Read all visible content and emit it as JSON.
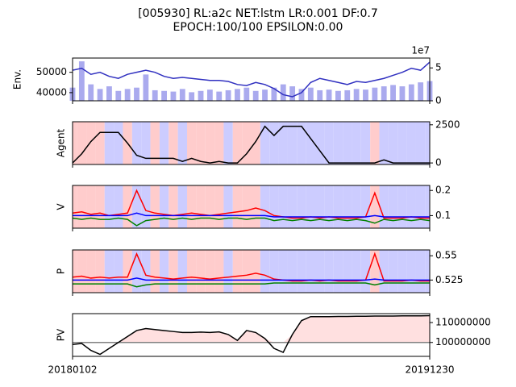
{
  "figure": {
    "title_lines": [
      "[005930] RL:a2c NET:lstm LR:0.001 DF:0.7",
      "EPOCH:100/100 EPSILON:0.00"
    ]
  },
  "chart_data": [
    {
      "type": "line",
      "ylabel": "Env.",
      "xlim": [
        0,
        39
      ],
      "x": [
        0,
        1,
        2,
        3,
        4,
        5,
        6,
        7,
        8,
        9,
        10,
        11,
        12,
        13,
        14,
        15,
        16,
        17,
        18,
        19,
        20,
        21,
        22,
        23,
        24,
        25,
        26,
        27,
        28,
        29,
        30,
        31,
        32,
        33,
        34,
        35,
        36,
        37,
        38,
        39
      ],
      "ylim": [
        36000,
        57000
      ],
      "yticks": [
        40000,
        50000
      ],
      "ytick_side": "left",
      "y2lim": [
        0,
        65000000
      ],
      "y2ticks": [
        0,
        {
          "value": 50000000,
          "label": "5"
        }
      ],
      "y2_offset_label": "1e7",
      "series": [
        {
          "color": "#aaaaee",
          "style": "bar",
          "axis": "y2",
          "values": [
            20000000,
            60000000,
            25000000,
            18000000,
            22000000,
            15000000,
            18000000,
            20000000,
            40000000,
            16000000,
            15000000,
            14000000,
            18000000,
            13000000,
            15000000,
            17000000,
            14000000,
            16000000,
            18000000,
            20000000,
            15000000,
            17000000,
            20000000,
            25000000,
            22000000,
            18000000,
            20000000,
            16000000,
            17000000,
            15000000,
            16000000,
            18000000,
            17000000,
            20000000,
            22000000,
            24000000,
            22000000,
            25000000,
            28000000,
            30000000
          ]
        },
        {
          "color": "#3030c0",
          "values": [
            51000,
            52000,
            49000,
            50000,
            48000,
            47000,
            49000,
            50000,
            51000,
            50000,
            48000,
            47000,
            47500,
            47000,
            46500,
            46000,
            46000,
            45500,
            44000,
            43500,
            45000,
            44000,
            42000,
            39000,
            38000,
            40000,
            45000,
            47000,
            46000,
            45000,
            44000,
            45500,
            45000,
            46000,
            47000,
            48500,
            50000,
            52000,
            51000,
            55000
          ]
        }
      ]
    },
    {
      "type": "line",
      "ylabel": "Agent",
      "xlim": [
        0,
        39
      ],
      "x": [
        0,
        1,
        2,
        3,
        4,
        5,
        6,
        7,
        8,
        9,
        10,
        11,
        12,
        13,
        14,
        15,
        16,
        17,
        18,
        19,
        20,
        21,
        22,
        23,
        24,
        25,
        26,
        27,
        28,
        29,
        30,
        31,
        32,
        33,
        34,
        35,
        36,
        37,
        38,
        39
      ],
      "ylim": [
        -100,
        2700
      ],
      "yticks": [
        0,
        2500
      ],
      "ytick_side": "right",
      "band_colors": [
        "#ffcccc",
        "#ffcccc",
        "#ffcccc",
        "#ffcccc",
        "#ccccff",
        "#ccccff",
        "#ffcccc",
        "#ccccff",
        "#ccccff",
        "#ffcccc",
        "#ccccff",
        "#ffcccc",
        "#ccccff",
        "#ffcccc",
        "#ffcccc",
        "#ffcccc",
        "#ffcccc",
        "#ccccff",
        "#ffcccc",
        "#ffcccc",
        "#ffcccc",
        "#ccccff",
        "#ccccff",
        "#ccccff",
        "#ccccff",
        "#ccccff",
        "#ccccff",
        "#ccccff",
        "#ccccff",
        "#ccccff",
        "#ccccff",
        "#ccccff",
        "#ccccff",
        "#ffcccc",
        "#ccccff",
        "#ccccff",
        "#ccccff",
        "#ccccff",
        "#ccccff",
        "#ccccff"
      ],
      "series": [
        {
          "color": "#000000",
          "values": [
            0,
            600,
            1400,
            2000,
            2000,
            2000,
            1300,
            500,
            300,
            300,
            300,
            300,
            100,
            300,
            100,
            0,
            100,
            0,
            0,
            600,
            1400,
            2400,
            1800,
            2400,
            2400,
            2400,
            1600,
            800,
            0,
            0,
            0,
            0,
            0,
            0,
            200,
            0,
            0,
            0,
            0,
            0
          ]
        }
      ]
    },
    {
      "type": "line",
      "ylabel": "V",
      "xlim": [
        0,
        39
      ],
      "x": [
        0,
        1,
        2,
        3,
        4,
        5,
        6,
        7,
        8,
        9,
        10,
        11,
        12,
        13,
        14,
        15,
        16,
        17,
        18,
        19,
        20,
        21,
        22,
        23,
        24,
        25,
        26,
        27,
        28,
        29,
        30,
        31,
        32,
        33,
        34,
        35,
        36,
        37,
        38,
        39
      ],
      "ylim": [
        0.05,
        0.22
      ],
      "yticks": [
        0.1,
        0.2
      ],
      "ytick_side": "right",
      "band_colors": [
        "#ffcccc",
        "#ffcccc",
        "#ffcccc",
        "#ffcccc",
        "#ccccff",
        "#ccccff",
        "#ffcccc",
        "#ccccff",
        "#ccccff",
        "#ffcccc",
        "#ccccff",
        "#ffcccc",
        "#ccccff",
        "#ffcccc",
        "#ffcccc",
        "#ffcccc",
        "#ffcccc",
        "#ccccff",
        "#ffcccc",
        "#ffcccc",
        "#ffcccc",
        "#ccccff",
        "#ccccff",
        "#ccccff",
        "#ccccff",
        "#ccccff",
        "#ccccff",
        "#ccccff",
        "#ccccff",
        "#ccccff",
        "#ccccff",
        "#ccccff",
        "#ccccff",
        "#ffcccc",
        "#ccccff",
        "#ccccff",
        "#ccccff",
        "#ccccff",
        "#ccccff",
        "#ccccff"
      ],
      "series": [
        {
          "color": "#ff0000",
          "values": [
            0.11,
            0.115,
            0.105,
            0.11,
            0.1,
            0.105,
            0.11,
            0.2,
            0.12,
            0.11,
            0.105,
            0.1,
            0.105,
            0.11,
            0.105,
            0.1,
            0.105,
            0.11,
            0.115,
            0.12,
            0.13,
            0.12,
            0.1,
            0.095,
            0.09,
            0.09,
            0.095,
            0.09,
            0.095,
            0.09,
            0.09,
            0.09,
            0.095,
            0.19,
            0.09,
            0.09,
            0.09,
            0.095,
            0.09,
            0.09
          ]
        },
        {
          "color": "#008000",
          "values": [
            0.09,
            0.085,
            0.09,
            0.085,
            0.085,
            0.09,
            0.085,
            0.06,
            0.08,
            0.085,
            0.09,
            0.085,
            0.09,
            0.085,
            0.09,
            0.09,
            0.085,
            0.09,
            0.09,
            0.085,
            0.09,
            0.09,
            0.08,
            0.085,
            0.08,
            0.085,
            0.08,
            0.085,
            0.08,
            0.085,
            0.08,
            0.085,
            0.08,
            0.07,
            0.085,
            0.08,
            0.085,
            0.08,
            0.085,
            0.08
          ]
        },
        {
          "color": "#0000ff",
          "values": [
            0.1,
            0.1,
            0.1,
            0.1,
            0.1,
            0.1,
            0.1,
            0.11,
            0.1,
            0.1,
            0.1,
            0.1,
            0.1,
            0.1,
            0.1,
            0.1,
            0.1,
            0.1,
            0.1,
            0.1,
            0.1,
            0.1,
            0.095,
            0.095,
            0.095,
            0.095,
            0.095,
            0.095,
            0.095,
            0.095,
            0.095,
            0.095,
            0.095,
            0.1,
            0.095,
            0.095,
            0.095,
            0.095,
            0.095,
            0.095
          ]
        }
      ]
    },
    {
      "type": "line",
      "ylabel": "P",
      "xlim": [
        0,
        39
      ],
      "x": [
        0,
        1,
        2,
        3,
        4,
        5,
        6,
        7,
        8,
        9,
        10,
        11,
        12,
        13,
        14,
        15,
        16,
        17,
        18,
        19,
        20,
        21,
        22,
        23,
        24,
        25,
        26,
        27,
        28,
        29,
        30,
        31,
        32,
        33,
        34,
        35,
        36,
        37,
        38,
        39
      ],
      "ylim": [
        0.512,
        0.556
      ],
      "yticks": [
        0.525,
        0.55
      ],
      "ytick_side": "right",
      "band_colors": [
        "#ffcccc",
        "#ffcccc",
        "#ffcccc",
        "#ffcccc",
        "#ccccff",
        "#ccccff",
        "#ffcccc",
        "#ccccff",
        "#ccccff",
        "#ffcccc",
        "#ccccff",
        "#ffcccc",
        "#ccccff",
        "#ffcccc",
        "#ffcccc",
        "#ffcccc",
        "#ffcccc",
        "#ccccff",
        "#ffcccc",
        "#ffcccc",
        "#ffcccc",
        "#ccccff",
        "#ccccff",
        "#ccccff",
        "#ccccff",
        "#ccccff",
        "#ccccff",
        "#ccccff",
        "#ccccff",
        "#ccccff",
        "#ccccff",
        "#ccccff",
        "#ccccff",
        "#ffcccc",
        "#ccccff",
        "#ccccff",
        "#ccccff",
        "#ccccff",
        "#ccccff",
        "#ccccff"
      ],
      "series": [
        {
          "color": "#ff0000",
          "values": [
            0.528,
            0.529,
            0.527,
            0.528,
            0.527,
            0.528,
            0.528,
            0.552,
            0.53,
            0.528,
            0.527,
            0.526,
            0.527,
            0.528,
            0.527,
            0.526,
            0.527,
            0.528,
            0.529,
            0.53,
            0.532,
            0.53,
            0.526,
            0.525,
            0.524,
            0.524,
            0.525,
            0.524,
            0.525,
            0.524,
            0.524,
            0.524,
            0.525,
            0.552,
            0.524,
            0.524,
            0.524,
            0.525,
            0.524,
            0.524
          ]
        },
        {
          "color": "#008000",
          "values": [
            0.521,
            0.521,
            0.521,
            0.521,
            0.521,
            0.521,
            0.521,
            0.518,
            0.52,
            0.521,
            0.521,
            0.521,
            0.521,
            0.521,
            0.521,
            0.521,
            0.521,
            0.521,
            0.521,
            0.521,
            0.521,
            0.521,
            0.522,
            0.522,
            0.522,
            0.522,
            0.522,
            0.522,
            0.522,
            0.522,
            0.522,
            0.522,
            0.522,
            0.52,
            0.522,
            0.522,
            0.522,
            0.522,
            0.522,
            0.522
          ]
        },
        {
          "color": "#0000ff",
          "values": [
            0.525,
            0.525,
            0.525,
            0.525,
            0.525,
            0.525,
            0.525,
            0.527,
            0.525,
            0.525,
            0.525,
            0.525,
            0.525,
            0.525,
            0.525,
            0.525,
            0.525,
            0.525,
            0.525,
            0.525,
            0.525,
            0.525,
            0.525,
            0.525,
            0.525,
            0.525,
            0.525,
            0.525,
            0.525,
            0.525,
            0.525,
            0.525,
            0.525,
            0.526,
            0.525,
            0.525,
            0.525,
            0.525,
            0.525,
            0.525
          ]
        }
      ]
    },
    {
      "type": "line",
      "ylabel": "PV",
      "xlim": [
        0,
        39
      ],
      "x": [
        0,
        1,
        2,
        3,
        4,
        5,
        6,
        7,
        8,
        9,
        10,
        11,
        12,
        13,
        14,
        15,
        16,
        17,
        18,
        19,
        20,
        21,
        22,
        23,
        24,
        25,
        26,
        27,
        28,
        29,
        30,
        31,
        32,
        33,
        34,
        35,
        36,
        37,
        38,
        39
      ],
      "ylim": [
        93000000,
        114500000
      ],
      "yticks": [
        100000000,
        110000000
      ],
      "ytick_side": "right",
      "xticks": [
        {
          "value": 0,
          "label": "20180102"
        },
        {
          "value": 39,
          "label": "20191230"
        }
      ],
      "reference_line": 100000000,
      "reference_color": "#808080",
      "fill_color": "#ffe0e0",
      "series": [
        {
          "color": "#000000",
          "values": [
            99000000,
            99500000,
            96000000,
            94000000,
            97000000,
            100000000,
            103000000,
            106000000,
            107000000,
            106500000,
            106000000,
            105500000,
            105000000,
            105000000,
            105200000,
            105000000,
            105300000,
            104000000,
            101000000,
            106000000,
            105000000,
            102000000,
            97000000,
            95000000,
            104000000,
            111000000,
            113000000,
            113000000,
            113000000,
            113100000,
            113100000,
            113200000,
            113200000,
            113300000,
            113300000,
            113300000,
            113400000,
            113400000,
            113400000,
            113500000
          ]
        }
      ]
    }
  ]
}
